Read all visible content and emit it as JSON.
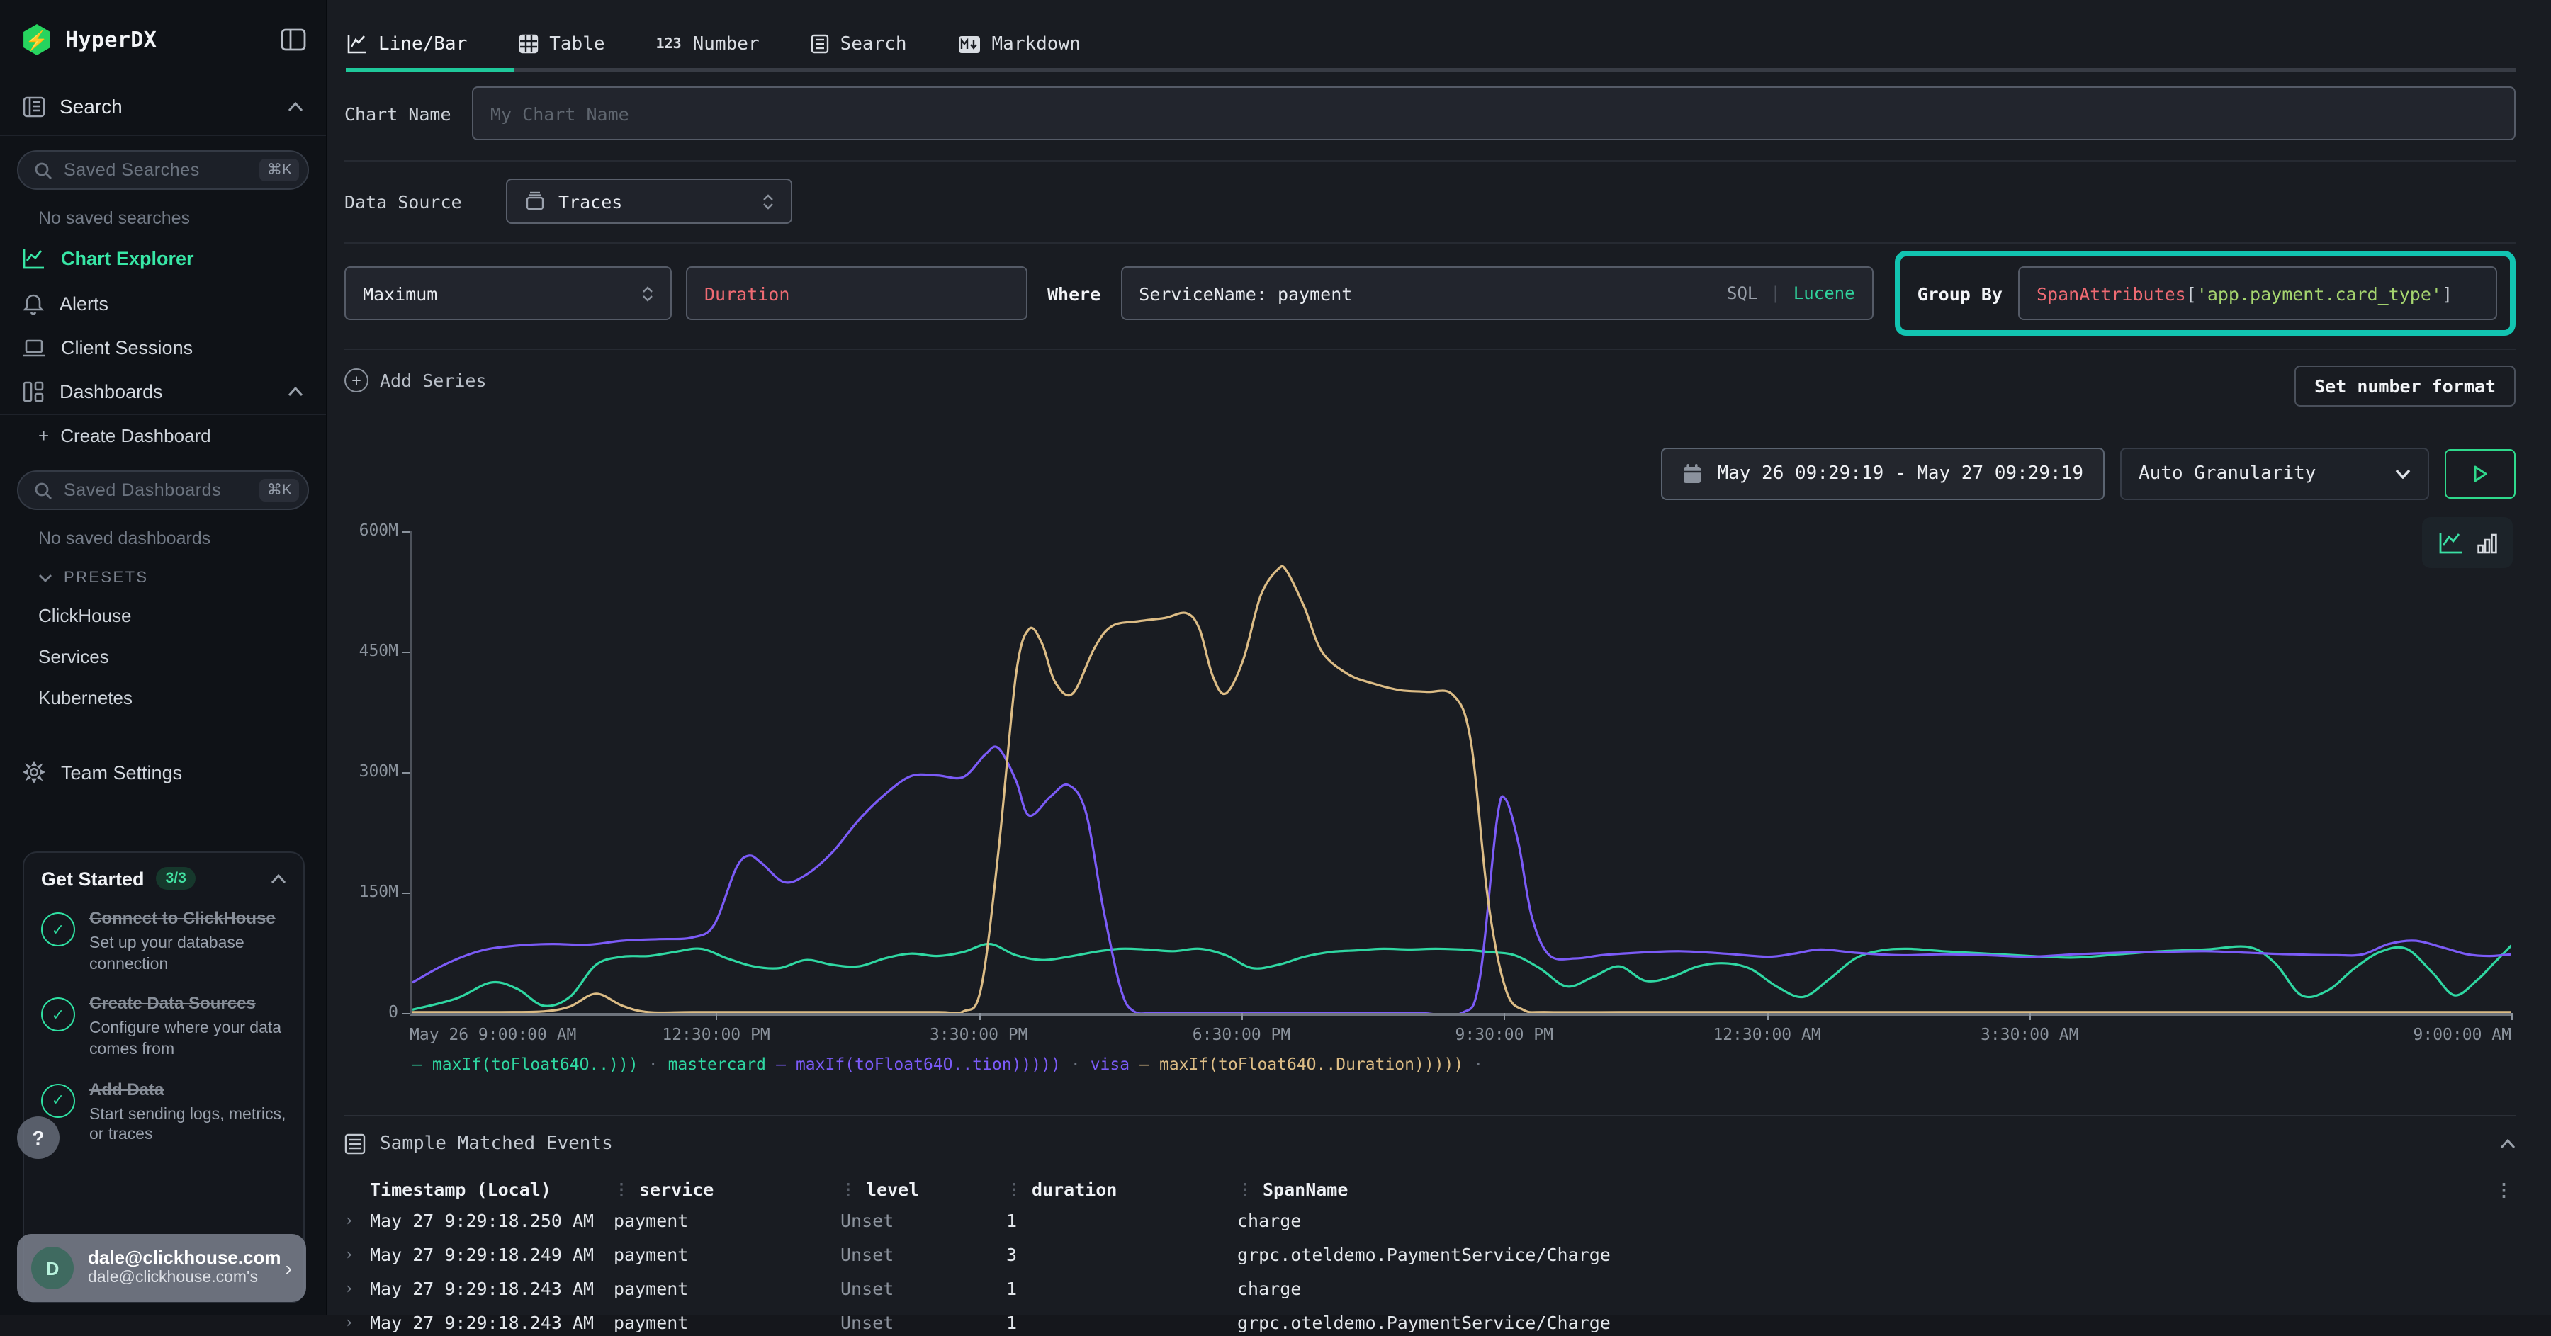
{
  "sidebar": {
    "logo": "HyperDX",
    "logo_bolt": "⚡",
    "search_section": "Search",
    "saved_searches_placeholder": "Saved Searches",
    "saved_searches_kbd": "⌘K",
    "no_saved_searches": "No saved searches",
    "nav": [
      {
        "label": "Chart Explorer"
      },
      {
        "label": "Alerts"
      },
      {
        "label": "Client Sessions"
      },
      {
        "label": "Dashboards"
      }
    ],
    "create_dashboard": "Create Dashboard",
    "create_dashboard_plus": "+",
    "saved_dashboards_placeholder": "Saved Dashboards",
    "saved_dashboards_kbd": "⌘K",
    "no_saved_dashboards": "No saved dashboards",
    "presets_label": "PRESETS",
    "presets": [
      "ClickHouse",
      "Services",
      "Kubernetes"
    ],
    "team_settings": "Team Settings",
    "get_started": {
      "title": "Get Started",
      "badge": "3/3",
      "items": [
        {
          "title": "Connect to ClickHouse",
          "desc": "Set up your database connection"
        },
        {
          "title": "Create Data Sources",
          "desc": "Configure where your data comes from"
        },
        {
          "title": "Add Data",
          "desc": "Start sending logs, metrics, or traces"
        }
      ]
    },
    "help": "?",
    "user": {
      "initial": "D",
      "name": "dale@clickhouse.com",
      "org": "dale@clickhouse.com's"
    }
  },
  "tabs": [
    {
      "label": "Line/Bar",
      "active": true
    },
    {
      "label": "Table",
      "active": false
    },
    {
      "label": "Number",
      "active": false
    },
    {
      "label": "Search",
      "active": false
    },
    {
      "label": "Markdown",
      "active": false
    }
  ],
  "number_tab_icon": "123",
  "form": {
    "chart_name_label": "Chart Name",
    "chart_name_placeholder": "My Chart Name",
    "data_source_label": "Data Source",
    "data_source_value": "Traces",
    "aggregation": "Maximum",
    "field": "Duration",
    "where_label": "Where",
    "where_value": "ServiceName: payment",
    "sql_label": "SQL",
    "sql_sep": "|",
    "lucene_label": "Lucene",
    "group_by_label": "Group By",
    "group_by_fn": "SpanAttributes",
    "group_by_open": "[",
    "group_by_arg": "'app.payment.card_type'",
    "group_by_close": "]",
    "add_series": "Add Series",
    "set_number_format": "Set number format",
    "highlight_color": "#12c4b1"
  },
  "controls": {
    "date_range": "May 26 09:29:19 - May 27 09:29:19",
    "granularity": "Auto Granularity"
  },
  "chart_data": {
    "type": "line",
    "title": "",
    "grid": false,
    "legend_position": "bottom",
    "x_range_hours": 24,
    "x_start": "May 26 9:00:00 AM",
    "x_end": "May 27 9:00:00 AM",
    "ylim": [
      0,
      600000000
    ],
    "y_unit": "M (millions, maxIf Duration)",
    "y_ticks": [
      "0",
      "150M",
      "300M",
      "450M",
      "600M"
    ],
    "x_ticks": [
      {
        "label": "May 26 9:00:00 AM",
        "hour": 0,
        "align": "left"
      },
      {
        "label": "12:30:00 PM",
        "hour": 3.5,
        "align": "center"
      },
      {
        "label": "3:30:00 PM",
        "hour": 6.5,
        "align": "center"
      },
      {
        "label": "6:30:00 PM",
        "hour": 9.5,
        "align": "center"
      },
      {
        "label": "9:30:00 PM",
        "hour": 12.5,
        "align": "center"
      },
      {
        "label": "12:30:00 AM",
        "hour": 15.5,
        "align": "center"
      },
      {
        "label": "3:30:00 AM",
        "hour": 18.5,
        "align": "center"
      },
      {
        "label": "9:00:00 AM",
        "hour": 24,
        "align": "right"
      }
    ],
    "series": [
      {
        "name": "mastercard",
        "expr": "maxIf(toFloat64O..)))",
        "color": "#2fd7a2",
        "unit": "millions",
        "points": [
          [
            0,
            4
          ],
          [
            0.5,
            18
          ],
          [
            0.9,
            38
          ],
          [
            1.2,
            30
          ],
          [
            1.5,
            9
          ],
          [
            1.8,
            20
          ],
          [
            2.1,
            60
          ],
          [
            2.4,
            70
          ],
          [
            2.7,
            71
          ],
          [
            3.0,
            76
          ],
          [
            3.3,
            80
          ],
          [
            3.6,
            68
          ],
          [
            3.9,
            58
          ],
          [
            4.2,
            56
          ],
          [
            4.5,
            66
          ],
          [
            4.8,
            60
          ],
          [
            5.1,
            58
          ],
          [
            5.4,
            68
          ],
          [
            5.7,
            74
          ],
          [
            6.0,
            71
          ],
          [
            6.3,
            76
          ],
          [
            6.6,
            86
          ],
          [
            6.9,
            72
          ],
          [
            7.2,
            66
          ],
          [
            7.5,
            70
          ],
          [
            7.8,
            76
          ],
          [
            8.1,
            80
          ],
          [
            8.4,
            79
          ],
          [
            8.7,
            77
          ],
          [
            9.0,
            80
          ],
          [
            9.3,
            72
          ],
          [
            9.6,
            56
          ],
          [
            9.9,
            60
          ],
          [
            10.2,
            70
          ],
          [
            10.5,
            76
          ],
          [
            10.8,
            78
          ],
          [
            11.1,
            80
          ],
          [
            11.4,
            79
          ],
          [
            11.7,
            80
          ],
          [
            12.0,
            79
          ],
          [
            12.3,
            76
          ],
          [
            12.6,
            72
          ],
          [
            12.9,
            55
          ],
          [
            13.2,
            33
          ],
          [
            13.5,
            45
          ],
          [
            13.8,
            58
          ],
          [
            14.1,
            40
          ],
          [
            14.4,
            45
          ],
          [
            14.7,
            58
          ],
          [
            15.0,
            62
          ],
          [
            15.3,
            55
          ],
          [
            15.6,
            33
          ],
          [
            15.9,
            20
          ],
          [
            16.2,
            42
          ],
          [
            16.5,
            68
          ],
          [
            16.8,
            78
          ],
          [
            17.1,
            80
          ],
          [
            17.5,
            77
          ],
          [
            18.0,
            74
          ],
          [
            18.5,
            71
          ],
          [
            19.0,
            69
          ],
          [
            19.5,
            73
          ],
          [
            20.0,
            77
          ],
          [
            20.5,
            79
          ],
          [
            21.0,
            82
          ],
          [
            21.3,
            62
          ],
          [
            21.6,
            22
          ],
          [
            21.9,
            28
          ],
          [
            22.2,
            55
          ],
          [
            22.5,
            76
          ],
          [
            22.8,
            80
          ],
          [
            23.1,
            50
          ],
          [
            23.35,
            22
          ],
          [
            23.6,
            40
          ],
          [
            23.8,
            62
          ],
          [
            24,
            84
          ]
        ]
      },
      {
        "name": "visa",
        "expr": "maxIf(toFloat64O..tion)))))",
        "color": "#7b5bf7",
        "unit": "millions",
        "points": [
          [
            0,
            38
          ],
          [
            0.4,
            62
          ],
          [
            0.8,
            78
          ],
          [
            1.2,
            84
          ],
          [
            1.6,
            86
          ],
          [
            2.0,
            85
          ],
          [
            2.4,
            90
          ],
          [
            2.8,
            92
          ],
          [
            3.2,
            94
          ],
          [
            3.45,
            110
          ],
          [
            3.7,
            180
          ],
          [
            3.85,
            196
          ],
          [
            4.0,
            186
          ],
          [
            4.25,
            163
          ],
          [
            4.5,
            172
          ],
          [
            4.8,
            200
          ],
          [
            5.1,
            240
          ],
          [
            5.4,
            272
          ],
          [
            5.7,
            295
          ],
          [
            6.0,
            296
          ],
          [
            6.3,
            294
          ],
          [
            6.55,
            322
          ],
          [
            6.7,
            330
          ],
          [
            6.9,
            290
          ],
          [
            7.05,
            246
          ],
          [
            7.3,
            270
          ],
          [
            7.5,
            284
          ],
          [
            7.7,
            250
          ],
          [
            7.9,
            130
          ],
          [
            8.1,
            30
          ],
          [
            8.25,
            2
          ],
          [
            8.5,
            0
          ],
          [
            9,
            0
          ],
          [
            10,
            0
          ],
          [
            11,
            0
          ],
          [
            11.5,
            0
          ],
          [
            12.0,
            0
          ],
          [
            12.2,
            40
          ],
          [
            12.4,
            240
          ],
          [
            12.5,
            266
          ],
          [
            12.65,
            210
          ],
          [
            12.8,
            120
          ],
          [
            13.0,
            72
          ],
          [
            13.3,
            68
          ],
          [
            13.6,
            72
          ],
          [
            14.0,
            75
          ],
          [
            14.5,
            77
          ],
          [
            15.0,
            74
          ],
          [
            15.5,
            70
          ],
          [
            15.8,
            74
          ],
          [
            16.1,
            79
          ],
          [
            16.5,
            75
          ],
          [
            17.0,
            72
          ],
          [
            17.5,
            73
          ],
          [
            18.0,
            72
          ],
          [
            18.5,
            70
          ],
          [
            19.0,
            73
          ],
          [
            19.5,
            75
          ],
          [
            20.0,
            76
          ],
          [
            20.5,
            77
          ],
          [
            21.0,
            75
          ],
          [
            21.5,
            73
          ],
          [
            22.0,
            72
          ],
          [
            22.3,
            73
          ],
          [
            22.6,
            86
          ],
          [
            22.9,
            90
          ],
          [
            23.2,
            82
          ],
          [
            23.5,
            73
          ],
          [
            23.75,
            71
          ],
          [
            24,
            73
          ]
        ]
      },
      {
        "name": "",
        "expr": "maxIf(toFloat64O..Duration)))))",
        "color": "#dcbc85",
        "unit": "millions",
        "points": [
          [
            0,
            1
          ],
          [
            0.5,
            1
          ],
          [
            1.0,
            1
          ],
          [
            1.5,
            2
          ],
          [
            1.8,
            8
          ],
          [
            2.1,
            24
          ],
          [
            2.4,
            9
          ],
          [
            2.7,
            1
          ],
          [
            3.2,
            1
          ],
          [
            4.0,
            1
          ],
          [
            5.0,
            1
          ],
          [
            6.0,
            1
          ],
          [
            6.3,
            2
          ],
          [
            6.5,
            30
          ],
          [
            6.7,
            200
          ],
          [
            6.9,
            420
          ],
          [
            7.05,
            478
          ],
          [
            7.2,
            460
          ],
          [
            7.35,
            412
          ],
          [
            7.55,
            398
          ],
          [
            7.8,
            455
          ],
          [
            8.0,
            482
          ],
          [
            8.3,
            488
          ],
          [
            8.6,
            492
          ],
          [
            8.85,
            498
          ],
          [
            9.0,
            478
          ],
          [
            9.15,
            420
          ],
          [
            9.3,
            398
          ],
          [
            9.5,
            440
          ],
          [
            9.7,
            520
          ],
          [
            9.9,
            553
          ],
          [
            10.0,
            550
          ],
          [
            10.2,
            505
          ],
          [
            10.4,
            450
          ],
          [
            10.7,
            422
          ],
          [
            11.0,
            410
          ],
          [
            11.3,
            402
          ],
          [
            11.6,
            400
          ],
          [
            11.9,
            396
          ],
          [
            12.1,
            340
          ],
          [
            12.3,
            140
          ],
          [
            12.5,
            30
          ],
          [
            12.7,
            4
          ],
          [
            13.0,
            1
          ],
          [
            14,
            1
          ],
          [
            16,
            1
          ],
          [
            18,
            1
          ],
          [
            20,
            1
          ],
          [
            22,
            1
          ],
          [
            24,
            1
          ]
        ]
      }
    ],
    "legend_separator": "·"
  },
  "sample_events": {
    "title": "Sample Matched Events",
    "columns": [
      "Timestamp (Local)",
      "service",
      "level",
      "duration",
      "SpanName"
    ],
    "rows": [
      [
        "May 27 9:29:18.250 AM",
        "payment",
        "Unset",
        "1",
        "charge"
      ],
      [
        "May 27 9:29:18.249 AM",
        "payment",
        "Unset",
        "3",
        "grpc.oteldemo.PaymentService/Charge"
      ],
      [
        "May 27 9:29:18.243 AM",
        "payment",
        "Unset",
        "1",
        "charge"
      ],
      [
        "May 27 9:29:18.243 AM",
        "payment",
        "Unset",
        "1",
        "grpc.oteldemo.PaymentService/Charge"
      ]
    ]
  }
}
